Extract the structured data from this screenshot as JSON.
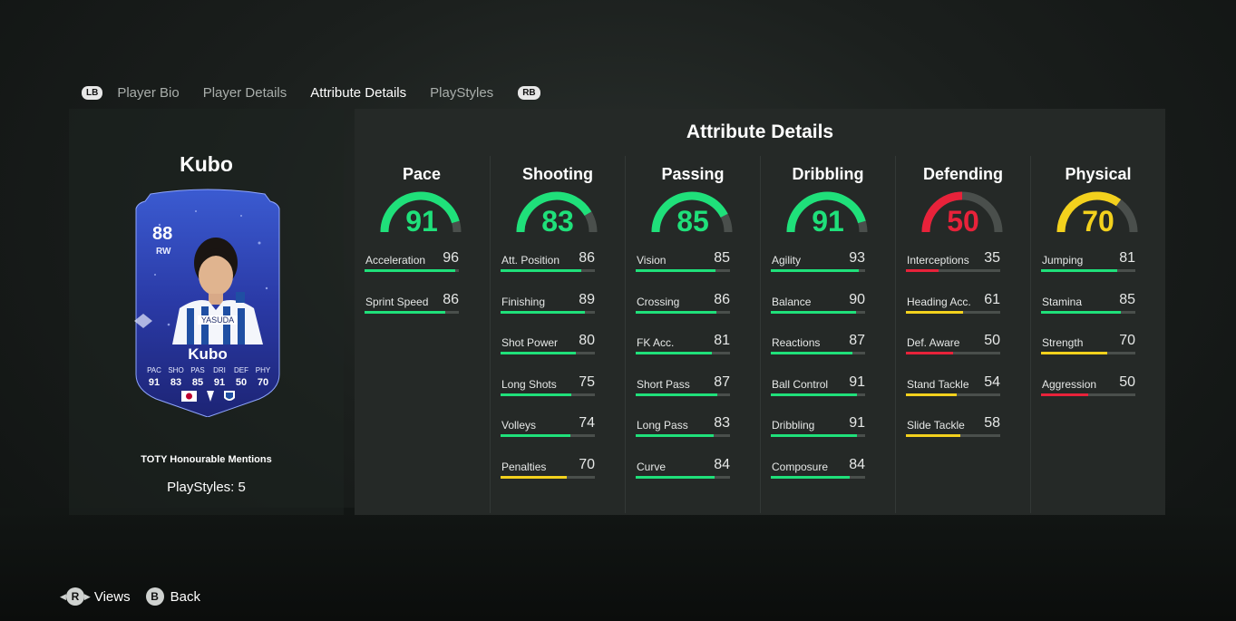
{
  "tabs": {
    "left_button": "LB",
    "right_button": "RB",
    "items": [
      {
        "label": "Player Bio",
        "active": false
      },
      {
        "label": "Player Details",
        "active": false
      },
      {
        "label": "Attribute Details",
        "active": true
      },
      {
        "label": "PlayStyles",
        "active": false
      }
    ]
  },
  "player": {
    "name": "Kubo",
    "edition": "TOTY Honourable Mentions",
    "playstyles": "PlayStyles: 5",
    "card": {
      "rating": "88",
      "position": "RW",
      "name": "Kubo",
      "sponsor": "YASUDA",
      "stat_labels": [
        "PAC",
        "SHO",
        "PAS",
        "DRI",
        "DEF",
        "PHY"
      ],
      "stat_values": [
        "91",
        "83",
        "85",
        "91",
        "50",
        "70"
      ]
    }
  },
  "panel": {
    "title": "Attribute Details",
    "colors": {
      "green": "#1fe07a",
      "red": "#e8223a",
      "yellow": "#f3d11d",
      "track": "#4a4f4c"
    },
    "categories": [
      {
        "name": "Pace",
        "value": "91",
        "color": "green",
        "attrs": [
          {
            "label": "Acceleration",
            "value": "96",
            "color": "green"
          },
          {
            "label": "Sprint Speed",
            "value": "86",
            "color": "green"
          }
        ]
      },
      {
        "name": "Shooting",
        "value": "83",
        "color": "green",
        "attrs": [
          {
            "label": "Att. Position",
            "value": "86",
            "color": "green"
          },
          {
            "label": "Finishing",
            "value": "89",
            "color": "green"
          },
          {
            "label": "Shot Power",
            "value": "80",
            "color": "green"
          },
          {
            "label": "Long Shots",
            "value": "75",
            "color": "green"
          },
          {
            "label": "Volleys",
            "value": "74",
            "color": "green"
          },
          {
            "label": "Penalties",
            "value": "70",
            "color": "yellow"
          }
        ]
      },
      {
        "name": "Passing",
        "value": "85",
        "color": "green",
        "attrs": [
          {
            "label": "Vision",
            "value": "85",
            "color": "green"
          },
          {
            "label": "Crossing",
            "value": "86",
            "color": "green"
          },
          {
            "label": "FK Acc.",
            "value": "81",
            "color": "green"
          },
          {
            "label": "Short Pass",
            "value": "87",
            "color": "green"
          },
          {
            "label": "Long Pass",
            "value": "83",
            "color": "green"
          },
          {
            "label": "Curve",
            "value": "84",
            "color": "green"
          }
        ]
      },
      {
        "name": "Dribbling",
        "value": "91",
        "color": "green",
        "attrs": [
          {
            "label": "Agility",
            "value": "93",
            "color": "green"
          },
          {
            "label": "Balance",
            "value": "90",
            "color": "green"
          },
          {
            "label": "Reactions",
            "value": "87",
            "color": "green"
          },
          {
            "label": "Ball Control",
            "value": "91",
            "color": "green"
          },
          {
            "label": "Dribbling",
            "value": "91",
            "color": "green"
          },
          {
            "label": "Composure",
            "value": "84",
            "color": "green"
          }
        ]
      },
      {
        "name": "Defending",
        "value": "50",
        "color": "red",
        "attrs": [
          {
            "label": "Interceptions",
            "value": "35",
            "color": "red"
          },
          {
            "label": "Heading Acc.",
            "value": "61",
            "color": "yellow"
          },
          {
            "label": "Def. Aware",
            "value": "50",
            "color": "red"
          },
          {
            "label": "Stand Tackle",
            "value": "54",
            "color": "yellow"
          },
          {
            "label": "Slide Tackle",
            "value": "58",
            "color": "yellow"
          }
        ]
      },
      {
        "name": "Physical",
        "value": "70",
        "color": "yellow",
        "attrs": [
          {
            "label": "Jumping",
            "value": "81",
            "color": "green"
          },
          {
            "label": "Stamina",
            "value": "85",
            "color": "green"
          },
          {
            "label": "Strength",
            "value": "70",
            "color": "yellow"
          },
          {
            "label": "Aggression",
            "value": "50",
            "color": "red"
          }
        ]
      }
    ]
  },
  "footer": {
    "views_button": "R",
    "views_label": "Views",
    "back_button": "B",
    "back_label": "Back"
  }
}
